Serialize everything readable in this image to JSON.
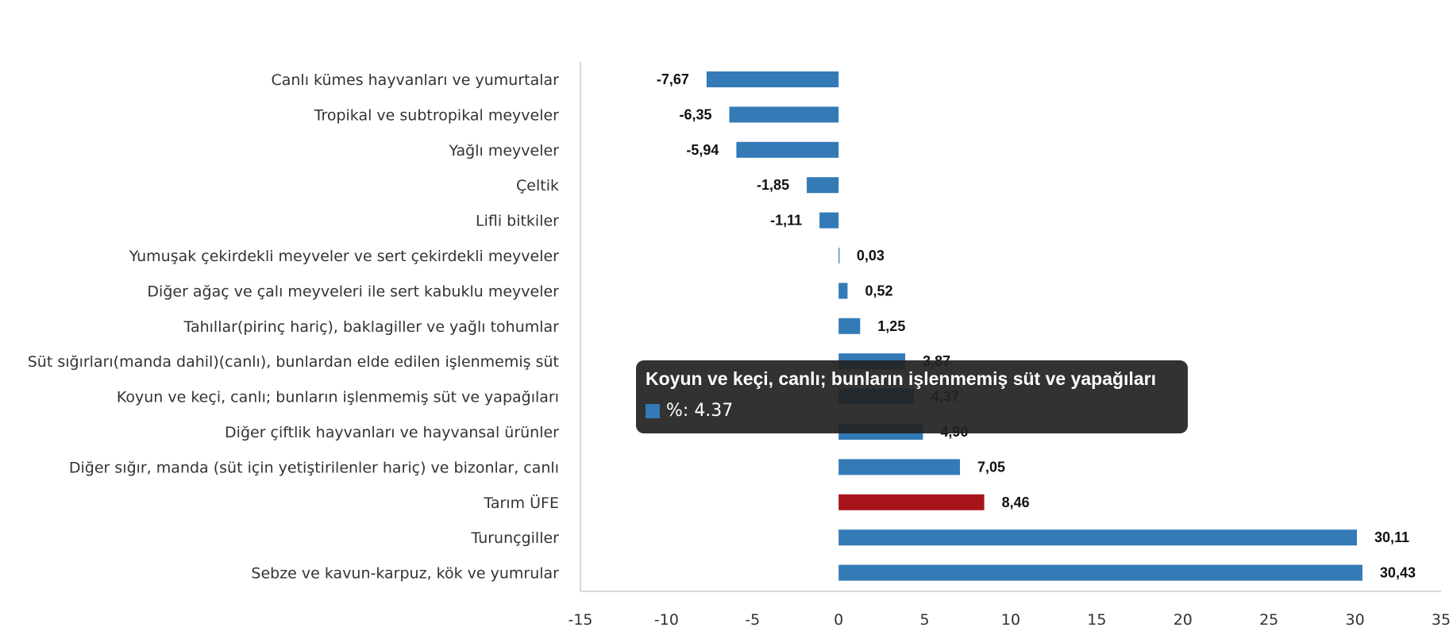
{
  "chart_data": {
    "type": "bar",
    "orientation": "horizontal",
    "categories": [
      "Canlı kümes hayvanları ve yumurtalar",
      "Tropikal ve subtropikal meyveler",
      "Yağlı meyveler",
      "Çeltik",
      "Lifli bitkiler",
      "Yumuşak çekirdekli meyveler ve sert çekirdekli meyveler",
      "Diğer ağaç ve çalı meyveleri ile sert kabuklu meyveler",
      "Tahıllar(pirinç hariç), baklagiller ve yağlı tohumlar",
      "Süt sığırları(manda dahil)(canlı), bunlardan elde edilen işlenmemiş süt",
      "Koyun ve keçi, canlı; bunların işlenmemiş süt ve yapağıları",
      "Diğer çiftlik hayvanları ve hayvansal ürünler",
      "Diğer sığır, manda (süt için yetiştirilenler hariç) ve bizonlar, canlı",
      "Tarım ÜFE",
      "Turunçgiller",
      "Sebze ve kavun-karpuz, kök ve yumrular"
    ],
    "values": [
      -7.67,
      -6.35,
      -5.94,
      -1.85,
      -1.11,
      0.03,
      0.52,
      1.25,
      3.87,
      4.37,
      4.9,
      7.05,
      8.46,
      30.11,
      30.43
    ],
    "value_labels": [
      "-7,67",
      "-6,35",
      "-5,94",
      "-1,85",
      "-1,11",
      "0,03",
      "0,52",
      "1,25",
      "3,87",
      "4,37",
      "4,90",
      "7,05",
      "8,46",
      "30,11",
      "30,43"
    ],
    "highlight_category": "Tarım ÜFE",
    "xlim": [
      -15,
      35
    ],
    "xticks": [
      -15,
      -10,
      -5,
      0,
      5,
      10,
      15,
      20,
      25,
      30,
      35
    ],
    "grid": false,
    "title": "",
    "xlabel": "",
    "ylabel": ""
  },
  "colors": {
    "bar": "#337ab7",
    "highlight": "#a8141a",
    "axis": "#cccccc"
  },
  "tooltip": {
    "title": "Koyun ve keçi, canlı; bunların işlenmemiş süt ve yapağıları",
    "series_name": "%",
    "value_text": "4.37"
  }
}
